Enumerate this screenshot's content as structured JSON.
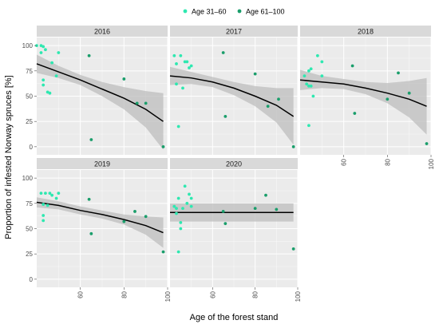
{
  "chart_data": {
    "type": "scatter",
    "xlabel": "Age of the forest stand",
    "ylabel": "Proportion of infested Norway spruces [%]",
    "xlim": [
      40,
      100
    ],
    "ylim": [
      -8,
      108
    ],
    "x_ticks": [
      60,
      80,
      100
    ],
    "y_ticks": [
      0,
      25,
      50,
      75,
      100
    ],
    "legend": {
      "position": "top",
      "entries": [
        {
          "label": "Age 31–60",
          "color": "#2ee8b0"
        },
        {
          "label": "Age 61–100",
          "color": "#1a9e6b"
        }
      ]
    },
    "grid": true,
    "facets": [
      {
        "title": "2016",
        "points_age_31_60": [
          [
            40,
            100
          ],
          [
            42,
            100
          ],
          [
            43,
            99
          ],
          [
            42,
            93
          ],
          [
            43,
            66
          ],
          [
            43,
            61
          ],
          [
            44,
            96
          ],
          [
            45,
            54
          ],
          [
            46,
            53
          ],
          [
            47,
            83
          ],
          [
            49,
            70
          ],
          [
            50,
            93
          ]
        ],
        "points_age_61_100": [
          [
            64,
            90
          ],
          [
            65,
            7
          ],
          [
            80,
            67
          ],
          [
            86,
            43
          ],
          [
            90,
            43
          ],
          [
            98,
            0
          ]
        ],
        "fit": [
          [
            40,
            82
          ],
          [
            50,
            74
          ],
          [
            60,
            66
          ],
          [
            70,
            57
          ],
          [
            80,
            48
          ],
          [
            90,
            37
          ],
          [
            98,
            25
          ]
        ],
        "ci_upper": [
          [
            40,
            91
          ],
          [
            50,
            80
          ],
          [
            60,
            71
          ],
          [
            70,
            64
          ],
          [
            80,
            59
          ],
          [
            90,
            55
          ],
          [
            98,
            53
          ]
        ],
        "ci_lower": [
          [
            40,
            73
          ],
          [
            50,
            68
          ],
          [
            60,
            61
          ],
          [
            70,
            50
          ],
          [
            80,
            37
          ],
          [
            90,
            19
          ],
          [
            98,
            -3
          ]
        ]
      },
      {
        "title": "2017",
        "points_age_31_60": [
          [
            42,
            90
          ],
          [
            43,
            82
          ],
          [
            43,
            62
          ],
          [
            44,
            20
          ],
          [
            45,
            90
          ],
          [
            46,
            58
          ],
          [
            47,
            84
          ],
          [
            48,
            84
          ],
          [
            49,
            78
          ],
          [
            50,
            80
          ]
        ],
        "points_age_61_100": [
          [
            65,
            93
          ],
          [
            66,
            30
          ],
          [
            80,
            72
          ],
          [
            86,
            40
          ],
          [
            91,
            47
          ],
          [
            98,
            0
          ]
        ],
        "fit": [
          [
            40,
            70
          ],
          [
            50,
            68
          ],
          [
            60,
            64
          ],
          [
            70,
            58
          ],
          [
            80,
            50
          ],
          [
            90,
            41
          ],
          [
            98,
            30
          ]
        ],
        "ci_upper": [
          [
            40,
            79
          ],
          [
            50,
            74
          ],
          [
            60,
            69
          ],
          [
            70,
            64
          ],
          [
            80,
            60
          ],
          [
            90,
            58
          ],
          [
            98,
            58
          ]
        ],
        "ci_lower": [
          [
            40,
            61
          ],
          [
            50,
            62
          ],
          [
            60,
            59
          ],
          [
            70,
            51
          ],
          [
            80,
            40
          ],
          [
            90,
            24
          ],
          [
            98,
            2
          ]
        ]
      },
      {
        "title": "2018",
        "points_age_31_60": [
          [
            42,
            70
          ],
          [
            43,
            62
          ],
          [
            44,
            75
          ],
          [
            44,
            60
          ],
          [
            44,
            21
          ],
          [
            45,
            77
          ],
          [
            45,
            60
          ],
          [
            46,
            50
          ],
          [
            48,
            90
          ],
          [
            50,
            70
          ],
          [
            50,
            84
          ]
        ],
        "points_age_61_100": [
          [
            64,
            80
          ],
          [
            65,
            33
          ],
          [
            80,
            47
          ],
          [
            85,
            73
          ],
          [
            90,
            53
          ],
          [
            98,
            3
          ]
        ],
        "fit": [
          [
            40,
            66
          ],
          [
            50,
            64
          ],
          [
            60,
            62
          ],
          [
            70,
            58
          ],
          [
            80,
            53
          ],
          [
            90,
            47
          ],
          [
            98,
            40
          ]
        ],
        "ci_upper": [
          [
            40,
            76
          ],
          [
            50,
            70
          ],
          [
            60,
            67
          ],
          [
            70,
            64
          ],
          [
            80,
            63
          ],
          [
            90,
            65
          ],
          [
            98,
            68
          ]
        ],
        "ci_lower": [
          [
            40,
            56
          ],
          [
            50,
            58
          ],
          [
            60,
            57
          ],
          [
            70,
            52
          ],
          [
            80,
            43
          ],
          [
            90,
            29
          ],
          [
            98,
            12
          ]
        ]
      },
      {
        "title": "2019",
        "points_age_31_60": [
          [
            42,
            85
          ],
          [
            43,
            74
          ],
          [
            43,
            63
          ],
          [
            43,
            58
          ],
          [
            44,
            85
          ],
          [
            45,
            73
          ],
          [
            46,
            85
          ],
          [
            47,
            83
          ],
          [
            49,
            80
          ],
          [
            50,
            85
          ]
        ],
        "points_age_61_100": [
          [
            64,
            79
          ],
          [
            65,
            45
          ],
          [
            80,
            57
          ],
          [
            85,
            67
          ],
          [
            90,
            62
          ],
          [
            98,
            27
          ]
        ],
        "fit": [
          [
            40,
            76
          ],
          [
            50,
            73
          ],
          [
            60,
            68
          ],
          [
            70,
            64
          ],
          [
            80,
            59
          ],
          [
            90,
            53
          ],
          [
            98,
            46
          ]
        ],
        "ci_upper": [
          [
            40,
            81
          ],
          [
            50,
            77
          ],
          [
            60,
            72
          ],
          [
            70,
            68
          ],
          [
            80,
            64
          ],
          [
            90,
            62
          ],
          [
            98,
            61
          ]
        ],
        "ci_lower": [
          [
            40,
            71
          ],
          [
            50,
            69
          ],
          [
            60,
            64
          ],
          [
            70,
            60
          ],
          [
            80,
            54
          ],
          [
            90,
            44
          ],
          [
            98,
            31
          ]
        ]
      },
      {
        "title": "2020",
        "points_age_31_60": [
          [
            42,
            72
          ],
          [
            43,
            65
          ],
          [
            43,
            70
          ],
          [
            44,
            80
          ],
          [
            44,
            27
          ],
          [
            45,
            56
          ],
          [
            45,
            50
          ],
          [
            46,
            70
          ],
          [
            47,
            92
          ],
          [
            48,
            75
          ],
          [
            49,
            84
          ],
          [
            50,
            80
          ],
          [
            50,
            72
          ]
        ],
        "points_age_61_100": [
          [
            65,
            67
          ],
          [
            66,
            55
          ],
          [
            80,
            70
          ],
          [
            85,
            83
          ],
          [
            90,
            69
          ],
          [
            98,
            30
          ]
        ],
        "fit": [
          [
            40,
            66
          ],
          [
            98,
            66
          ]
        ],
        "ci_upper": [
          [
            40,
            75
          ],
          [
            98,
            75
          ]
        ],
        "ci_lower": [
          [
            40,
            57
          ],
          [
            98,
            57
          ]
        ]
      }
    ]
  }
}
